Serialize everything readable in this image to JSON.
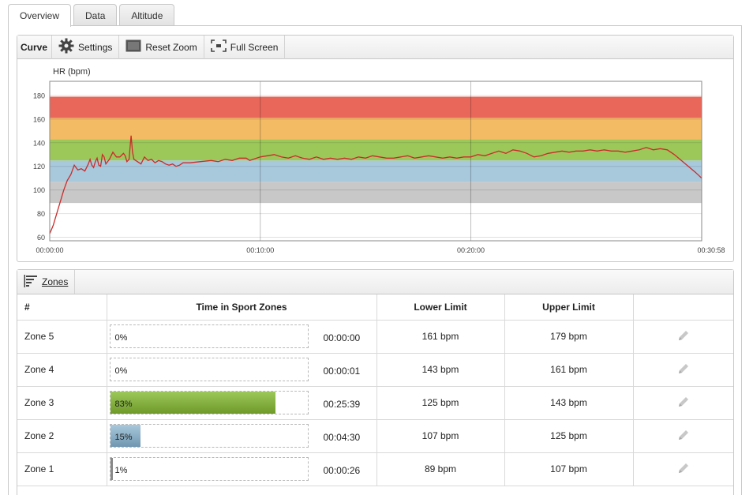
{
  "tabs": [
    {
      "label": "Overview",
      "active": true
    },
    {
      "label": "Data",
      "active": false
    },
    {
      "label": "Altitude",
      "active": false
    }
  ],
  "chart_toolbar": {
    "title": "Curve",
    "settings": "Settings",
    "reset_zoom": "Reset Zoom",
    "full_screen": "Full Screen"
  },
  "chart_data": {
    "type": "line",
    "ylabel": "HR (bpm)",
    "ylim": [
      57,
      192
    ],
    "y_ticks": [
      "60",
      "80",
      "100",
      "120",
      "140",
      "160",
      "180"
    ],
    "x_ticks": [
      "00:00:00",
      "00:10:00",
      "00:20:00",
      "00:30:58"
    ],
    "xlim_seconds": [
      0,
      1858
    ],
    "zones": [
      {
        "name": "Zone 1",
        "from": 89,
        "to": 107,
        "color": "#c8c8c8"
      },
      {
        "name": "Zone 2",
        "from": 107,
        "to": 125,
        "color": "#a8c8dc"
      },
      {
        "name": "Zone 3",
        "from": 125,
        "to": 143,
        "color": "#9cc85a"
      },
      {
        "name": "Zone 4",
        "from": 143,
        "to": 161,
        "color": "#f2bb64"
      },
      {
        "name": "Zone 5",
        "from": 161,
        "to": 179,
        "color": "#e9675a"
      }
    ],
    "series": [
      {
        "color": "#cc2a2a",
        "points": [
          [
            0,
            63
          ],
          [
            10,
            70
          ],
          [
            25,
            85
          ],
          [
            40,
            100
          ],
          [
            50,
            108
          ],
          [
            60,
            113
          ],
          [
            70,
            121
          ],
          [
            75,
            119
          ],
          [
            80,
            117
          ],
          [
            90,
            118
          ],
          [
            100,
            116
          ],
          [
            110,
            122
          ],
          [
            115,
            126
          ],
          [
            120,
            121
          ],
          [
            125,
            119
          ],
          [
            130,
            124
          ],
          [
            135,
            127
          ],
          [
            140,
            121
          ],
          [
            145,
            120
          ],
          [
            150,
            130
          ],
          [
            155,
            128
          ],
          [
            160,
            122
          ],
          [
            170,
            126
          ],
          [
            180,
            132
          ],
          [
            190,
            128
          ],
          [
            200,
            128
          ],
          [
            210,
            131
          ],
          [
            215,
            129
          ],
          [
            220,
            124
          ],
          [
            226,
            126
          ],
          [
            232,
            146
          ],
          [
            236,
            132
          ],
          [
            240,
            126
          ],
          [
            250,
            124
          ],
          [
            260,
            122
          ],
          [
            270,
            128
          ],
          [
            280,
            125
          ],
          [
            290,
            126
          ],
          [
            300,
            123
          ],
          [
            310,
            125
          ],
          [
            320,
            124
          ],
          [
            330,
            122
          ],
          [
            340,
            121
          ],
          [
            350,
            122
          ],
          [
            360,
            120
          ],
          [
            370,
            121
          ],
          [
            380,
            123
          ],
          [
            400,
            123
          ],
          [
            430,
            124
          ],
          [
            460,
            125
          ],
          [
            480,
            124
          ],
          [
            500,
            126
          ],
          [
            520,
            125
          ],
          [
            540,
            127
          ],
          [
            560,
            127
          ],
          [
            570,
            125
          ],
          [
            580,
            126
          ],
          [
            600,
            128
          ],
          [
            620,
            129
          ],
          [
            640,
            130
          ],
          [
            660,
            128
          ],
          [
            680,
            127
          ],
          [
            700,
            129
          ],
          [
            720,
            127
          ],
          [
            740,
            126
          ],
          [
            760,
            128
          ],
          [
            780,
            126
          ],
          [
            800,
            127
          ],
          [
            820,
            126
          ],
          [
            840,
            127
          ],
          [
            860,
            126
          ],
          [
            880,
            128
          ],
          [
            900,
            127
          ],
          [
            920,
            129
          ],
          [
            940,
            128
          ],
          [
            960,
            127
          ],
          [
            980,
            127
          ],
          [
            1000,
            128
          ],
          [
            1020,
            129
          ],
          [
            1040,
            127
          ],
          [
            1060,
            128
          ],
          [
            1080,
            129
          ],
          [
            1100,
            128
          ],
          [
            1120,
            127
          ],
          [
            1140,
            128
          ],
          [
            1160,
            127
          ],
          [
            1180,
            128
          ],
          [
            1200,
            128
          ],
          [
            1220,
            130
          ],
          [
            1240,
            129
          ],
          [
            1260,
            131
          ],
          [
            1280,
            133
          ],
          [
            1300,
            131
          ],
          [
            1320,
            134
          ],
          [
            1340,
            133
          ],
          [
            1360,
            131
          ],
          [
            1380,
            128
          ],
          [
            1400,
            129
          ],
          [
            1420,
            131
          ],
          [
            1440,
            132
          ],
          [
            1460,
            133
          ],
          [
            1480,
            132
          ],
          [
            1500,
            133
          ],
          [
            1520,
            133
          ],
          [
            1540,
            134
          ],
          [
            1560,
            133
          ],
          [
            1580,
            134
          ],
          [
            1600,
            133
          ],
          [
            1620,
            133
          ],
          [
            1640,
            132
          ],
          [
            1660,
            133
          ],
          [
            1680,
            134
          ],
          [
            1700,
            136
          ],
          [
            1720,
            134
          ],
          [
            1740,
            135
          ],
          [
            1760,
            134
          ],
          [
            1780,
            130
          ],
          [
            1800,
            125
          ],
          [
            1820,
            120
          ],
          [
            1840,
            115
          ],
          [
            1858,
            110
          ]
        ]
      }
    ]
  },
  "zones_toolbar": {
    "title": "Zones"
  },
  "zones_table": {
    "headers": [
      "#",
      "Time in Sport Zones",
      "Lower Limit",
      "Upper Limit",
      ""
    ],
    "rows": [
      {
        "zone": "Zone 5",
        "percent": "0%",
        "fraction": 0.0,
        "time": "00:00:00",
        "lower": "161 bpm",
        "upper": "179 bpm"
      },
      {
        "zone": "Zone 4",
        "percent": "0%",
        "fraction": 0.0,
        "time": "00:00:01",
        "lower": "143 bpm",
        "upper": "161 bpm"
      },
      {
        "zone": "Zone 3",
        "percent": "83%",
        "fraction": 0.83,
        "time": "00:25:39",
        "lower": "125 bpm",
        "upper": "143 bpm"
      },
      {
        "zone": "Zone 2",
        "percent": "15%",
        "fraction": 0.15,
        "time": "00:04:30",
        "lower": "107 bpm",
        "upper": "125 bpm"
      },
      {
        "zone": "Zone 1",
        "percent": "1%",
        "fraction": 0.01,
        "time": "00:00:26",
        "lower": "89 bpm",
        "upper": "107 bpm"
      }
    ]
  },
  "colors": {
    "zone3_bar": "#86b23a",
    "zone2_bar": "#8bb3c9",
    "zone1_bar": "#888888",
    "heart_rate_line": "#cc2a2a"
  }
}
